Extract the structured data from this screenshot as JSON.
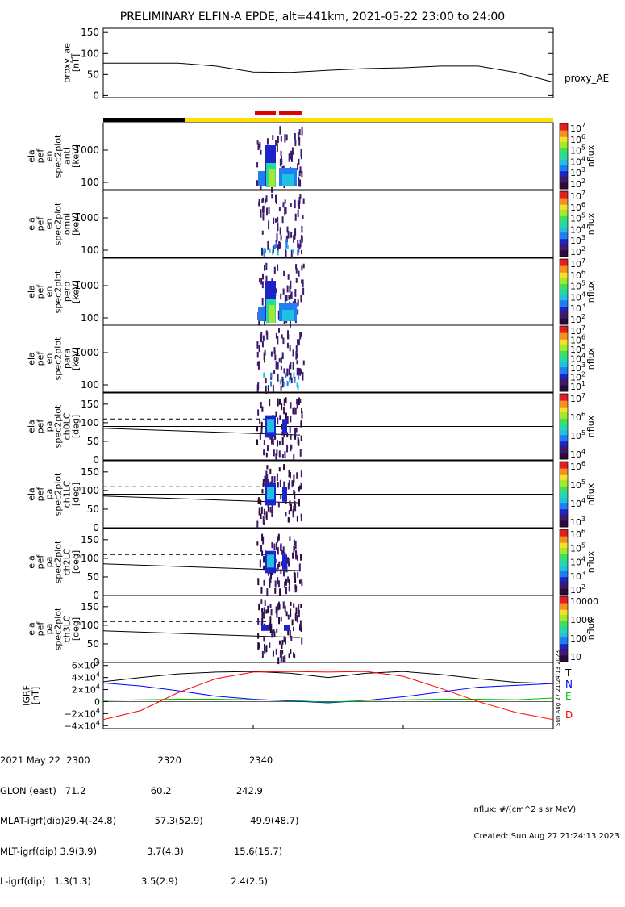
{
  "title": "PRELIMINARY ELFIN-A EPDE, alt=441km, 2021-05-22 23:00 to 24:00",
  "colors": {
    "black_bar": "#000000",
    "yellow_bar": "#ffdd00",
    "red_seg": "#e00000",
    "T": "#000000",
    "N": "#0000ff",
    "E": "#00c000",
    "D": "#ff0000"
  },
  "chart_data": [
    {
      "type": "line",
      "panel": "proxy_ae",
      "ylabel_lines": [
        "proxy_ae",
        "[nT]"
      ],
      "legend": "proxy_AE",
      "ylim": [
        -5,
        160
      ],
      "yticks": [
        0,
        50,
        100,
        150
      ],
      "x_minutes": [
        0,
        5,
        10,
        15,
        20,
        25,
        30,
        35,
        40,
        45,
        50,
        55,
        60
      ],
      "values": [
        77,
        77,
        77,
        70,
        56,
        55,
        60,
        64,
        66,
        70,
        70,
        55,
        32
      ]
    },
    {
      "type": "heatmap",
      "panel": "anti",
      "ylabel_lines": [
        "ela",
        "pef",
        "en",
        "spec2plot",
        "anti",
        "[keV]"
      ],
      "yticks": [
        "1000",
        "100"
      ],
      "scale": "log",
      "colorbar": {
        "label": "nflux",
        "ticks": [
          "10^2",
          "10^3",
          "10^4",
          "10^5",
          "10^6",
          "10^7"
        ]
      }
    },
    {
      "type": "heatmap",
      "panel": "omni",
      "ylabel_lines": [
        "ela",
        "pef",
        "en",
        "spec2plot",
        "omni",
        "[keV]"
      ],
      "yticks": [
        "1000",
        "100"
      ],
      "scale": "log",
      "colorbar": {
        "label": "nflux",
        "ticks": [
          "10^2",
          "10^3",
          "10^4",
          "10^5",
          "10^6",
          "10^7"
        ]
      }
    },
    {
      "type": "heatmap",
      "panel": "perp",
      "ylabel_lines": [
        "ela",
        "pef",
        "en",
        "spec2plot",
        "perp",
        "[keV]"
      ],
      "yticks": [
        "1000",
        "100"
      ],
      "scale": "log",
      "colorbar": {
        "label": "nflux",
        "ticks": [
          "10^2",
          "10^3",
          "10^4",
          "10^5",
          "10^6",
          "10^7"
        ]
      }
    },
    {
      "type": "heatmap",
      "panel": "para",
      "ylabel_lines": [
        "ela",
        "pef",
        "en",
        "spec2plot",
        "para",
        "[keV]"
      ],
      "yticks": [
        "1000",
        "100"
      ],
      "scale": "log",
      "colorbar": {
        "label": "nflux",
        "ticks": [
          "10^1",
          "10^2",
          "10^3",
          "10^4",
          "10^5",
          "10^6",
          "10^7"
        ]
      }
    },
    {
      "type": "heatmap",
      "panel": "ch0LC",
      "ylabel_lines": [
        "ela",
        "pef",
        "pa",
        "spec2plot",
        "ch0LC",
        "[deg]"
      ],
      "yticks": [
        "0",
        "50",
        "100",
        "150"
      ],
      "ylim": [
        0,
        180
      ],
      "colorbar": {
        "label": "nflux",
        "ticks": [
          "10^4",
          "10^5",
          "10^6",
          "10^7"
        ]
      }
    },
    {
      "type": "heatmap",
      "panel": "ch1LC",
      "ylabel_lines": [
        "ela",
        "pef",
        "pa",
        "spec2plot",
        "ch1LC",
        "[deg]"
      ],
      "yticks": [
        "0",
        "50",
        "100",
        "150"
      ],
      "ylim": [
        0,
        180
      ],
      "colorbar": {
        "label": "nflux",
        "ticks": [
          "10^3",
          "10^4",
          "10^5",
          "10^6"
        ]
      }
    },
    {
      "type": "heatmap",
      "panel": "ch2LC",
      "ylabel_lines": [
        "ela",
        "pef",
        "pa",
        "spec2plot",
        "ch2LC",
        "[deg]"
      ],
      "yticks": [
        "0",
        "50",
        "100",
        "150"
      ],
      "ylim": [
        0,
        180
      ],
      "colorbar": {
        "label": "nflux",
        "ticks": [
          "10^2",
          "10^3",
          "10^4",
          "10^5",
          "10^6"
        ]
      }
    },
    {
      "type": "heatmap",
      "panel": "ch3LC",
      "ylabel_lines": [
        "ela",
        "pef",
        "pa",
        "spec2plot",
        "ch3LC",
        "[deg]"
      ],
      "yticks": [
        "0",
        "50",
        "100",
        "150"
      ],
      "ylim": [
        0,
        180
      ],
      "colorbar": {
        "label": "nflux",
        "ticks": [
          "10",
          "100",
          "1000",
          "10000"
        ]
      }
    },
    {
      "type": "line",
      "panel": "igrf",
      "ylabel_lines": [
        "IGRF",
        "[nT]"
      ],
      "ylim": [
        -45000,
        65000
      ],
      "yticks": [
        "6×10^4",
        "4×10^4",
        "2×10^4",
        "0",
        "−2×10^4",
        "−4×10^4"
      ],
      "x_minutes": [
        0,
        5,
        10,
        15,
        20,
        25,
        30,
        35,
        40,
        45,
        50,
        55,
        60
      ],
      "series": [
        {
          "name": "T",
          "values": [
            33000,
            40000,
            46000,
            49000,
            50000,
            47000,
            40000,
            47000,
            50000,
            45000,
            38000,
            32000,
            30000
          ]
        },
        {
          "name": "N",
          "values": [
            31000,
            26000,
            18000,
            9000,
            4000,
            1000,
            -2000,
            2000,
            8000,
            16000,
            24000,
            27000,
            30000
          ]
        },
        {
          "name": "E",
          "values": [
            2000,
            3000,
            4000,
            4000,
            3000,
            2000,
            -1000,
            2000,
            3000,
            4000,
            4000,
            3000,
            6000
          ]
        },
        {
          "name": "D",
          "values": [
            -30000,
            -15000,
            15000,
            38000,
            49000,
            50000,
            49000,
            50000,
            42000,
            22000,
            0,
            -18000,
            -30000
          ]
        }
      ]
    }
  ],
  "time_labels": [
    "2300",
    "2320",
    "2340"
  ],
  "footer": {
    "lines": [
      "2021 May 22  2300                       2320                       2340",
      "GLON (east)   71.2                      60.2                      242.9",
      "MLAT-igrf(dip)29.4(-24.8)             57.3(52.9)                49.9(48.7)",
      "MLT-igrf(dip) 3.9(3.9)                 3.7(4.3)                 15.6(15.7)",
      "L-igrf(dip)   1.3(1.3)                 3.5(2.9)                  2.4(2.5)"
    ],
    "units": "nflux: #/(cm^2 s sr MeV)",
    "created": "Created: Sun Aug 27 21:24:13 2023"
  },
  "side_stamp": "Sun Aug 27 21:24:13 2023"
}
